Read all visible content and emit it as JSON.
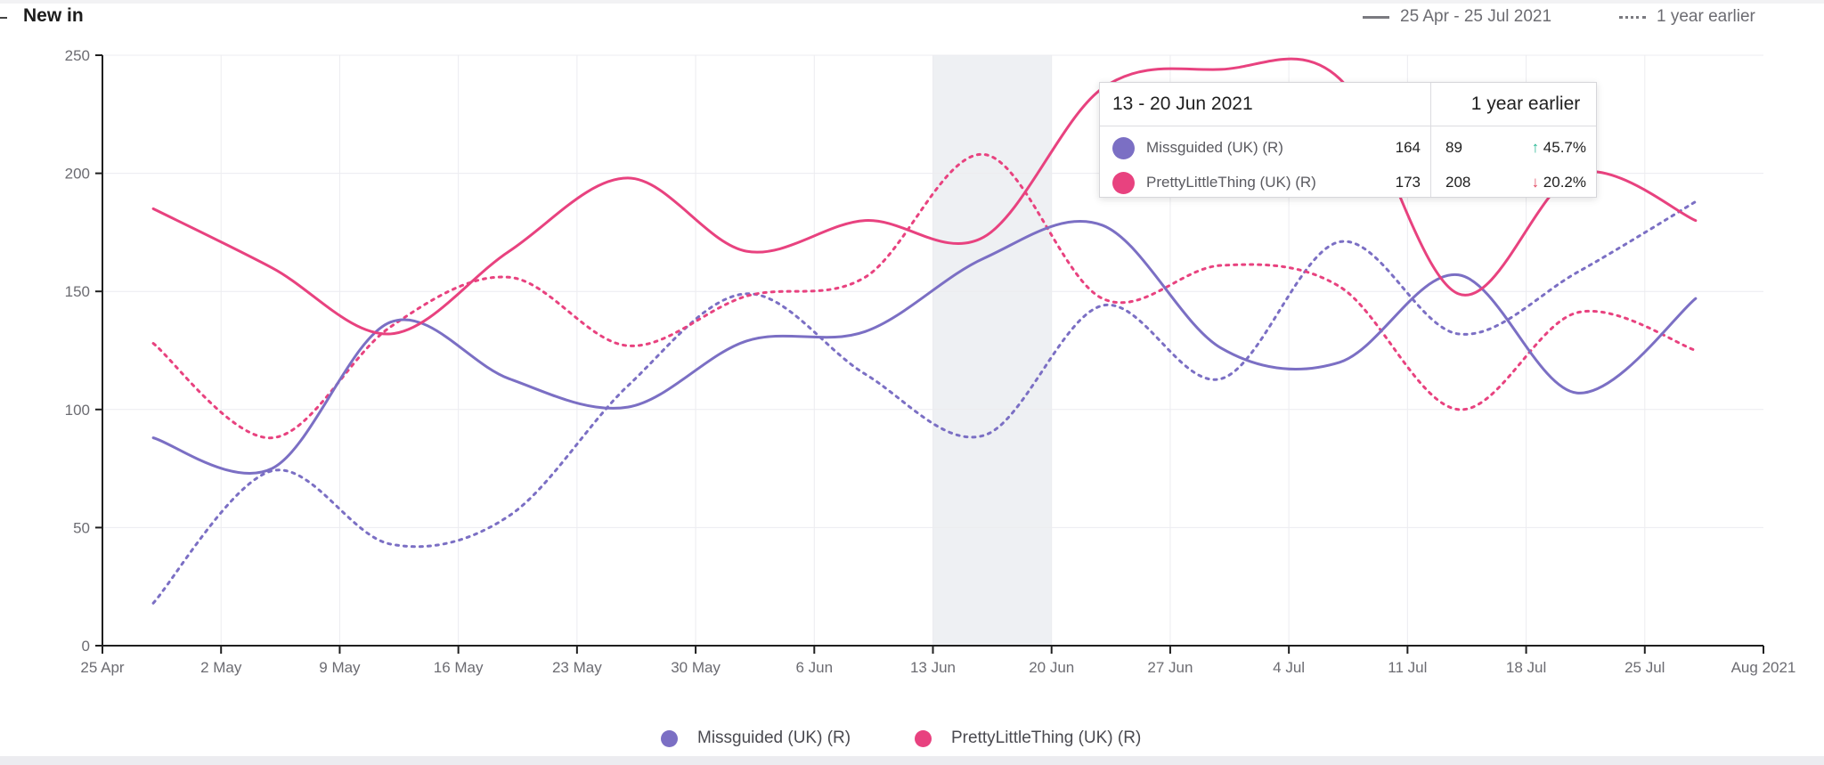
{
  "header": {
    "title": "New in",
    "legend_current": "25 Apr - 25 Jul 2021",
    "legend_previous": "1 year earlier"
  },
  "colors": {
    "missguided": "#7b6fc4",
    "prettylittlething": "#e8427f",
    "grid": "#ececf0",
    "highlight_band": "#eef0f3",
    "axis": "#1f1f1f"
  },
  "chart_data": {
    "type": "line",
    "title": "New in",
    "ylim": [
      0,
      250
    ],
    "yticks": [
      "0",
      "50",
      "100",
      "150",
      "200",
      "250"
    ],
    "xlim": [
      "2021-04-25",
      "2021-08-01"
    ],
    "xtick_labels": [
      "25 Apr",
      "2 May",
      "9 May",
      "16 May",
      "23 May",
      "30 May",
      "6 Jun",
      "13 Jun",
      "20 Jun",
      "27 Jun",
      "4 Jul",
      "11 Jul",
      "18 Jul",
      "25 Jul",
      "Aug 2021"
    ],
    "highlight_range": [
      "2021-06-13",
      "2021-06-20"
    ],
    "grid": true,
    "legend_position": "bottom",
    "x": [
      "2021-04-28",
      "2021-05-05",
      "2021-05-12",
      "2021-05-19",
      "2021-05-26",
      "2021-06-02",
      "2021-06-09",
      "2021-06-16",
      "2021-06-23",
      "2021-06-30",
      "2021-07-07",
      "2021-07-14",
      "2021-07-21",
      "2021-07-28"
    ],
    "series": [
      {
        "name": "Missguided (UK) (R)",
        "style": "solid",
        "color": "#7b6fc4",
        "values": [
          88,
          75,
          137,
          113,
          101,
          129,
          133,
          164,
          178,
          126,
          120,
          157,
          107,
          147
        ]
      },
      {
        "name": "PrettyLittleThing (UK) (R)",
        "style": "solid",
        "color": "#e8427f",
        "values": [
          185,
          160,
          132,
          167,
          198,
          167,
          180,
          173,
          236,
          244,
          240,
          149,
          200,
          180
        ]
      },
      {
        "name": "Missguided (UK) (R)",
        "period": "1 year earlier",
        "style": "dotted",
        "color": "#7b6fc4",
        "values": [
          18,
          74,
          43,
          55,
          110,
          149,
          115,
          89,
          144,
          113,
          171,
          132,
          158,
          188
        ]
      },
      {
        "name": "PrettyLittleThing (UK) (R)",
        "period": "1 year earlier",
        "style": "dotted",
        "color": "#e8427f",
        "values": [
          128,
          88,
          135,
          156,
          127,
          148,
          156,
          208,
          147,
          161,
          152,
          100,
          141,
          125
        ]
      }
    ]
  },
  "tooltip": {
    "period": "13 - 20 Jun 2021",
    "previous_label": "1 year earlier",
    "rows": [
      {
        "name": "Missguided (UK) (R)",
        "current": "164",
        "previous": "89",
        "direction": "up",
        "arrow": "↑",
        "change": "45.7%",
        "color": "#7b6fc4"
      },
      {
        "name": "PrettyLittleThing (UK) (R)",
        "current": "173",
        "previous": "208",
        "direction": "down",
        "arrow": "↓",
        "change": "20.2%",
        "color": "#e8427f"
      }
    ]
  },
  "legend": {
    "items": [
      {
        "label": "Missguided (UK) (R)",
        "color": "#7b6fc4"
      },
      {
        "label": "PrettyLittleThing (UK) (R)",
        "color": "#e8427f"
      }
    ]
  }
}
